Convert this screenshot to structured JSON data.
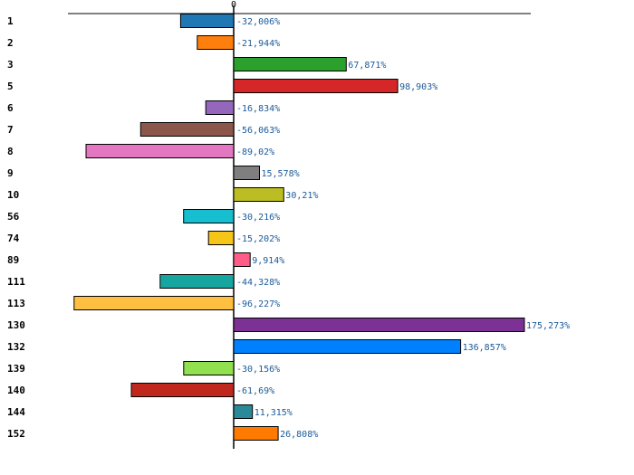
{
  "chart_data": {
    "type": "bar",
    "orientation": "horizontal",
    "title": "",
    "xlabel": "",
    "ylabel": "",
    "categories": [
      "1",
      "2",
      "3",
      "5",
      "6",
      "7",
      "8",
      "9",
      "10",
      "56",
      "74",
      "89",
      "111",
      "113",
      "130",
      "132",
      "139",
      "140",
      "144",
      "152"
    ],
    "values": [
      -32.006,
      -21.944,
      67.871,
      98.903,
      -16.834,
      -56.063,
      -89.02,
      15.578,
      30.21,
      -30.216,
      -15.202,
      9.914,
      -44.328,
      -96.227,
      175.273,
      136.857,
      -30.156,
      -61.69,
      11.315,
      26.808
    ],
    "value_labels": [
      "-32,006%",
      "-21,944%",
      "67,871%",
      "98,903%",
      "-16,834%",
      "-56,063%",
      "-89,02%",
      "15,578%",
      "30,21%",
      "-30,216%",
      "-15,202%",
      "9,914%",
      "-44,328%",
      "-96,227%",
      "175,273%",
      "136,857%",
      "-30,156%",
      "-61,69%",
      "11,315%",
      "26,808%"
    ],
    "colors": [
      "#1f77b4",
      "#ff7f0e",
      "#2ca02c",
      "#d62728",
      "#9467bd",
      "#8c564b",
      "#e377c2",
      "#7f7f7f",
      "#bcbd22",
      "#17becf",
      "#f5c518",
      "#ff5c8a",
      "#17a5a0",
      "#ffbf40",
      "#7b3294",
      "#0080ff",
      "#90e050",
      "#c0281e",
      "#2a8a9a",
      "#ff7a00"
    ],
    "zero_tick_label": "0",
    "xlim": [
      -100,
      179
    ],
    "grid": false,
    "legend": "none"
  }
}
